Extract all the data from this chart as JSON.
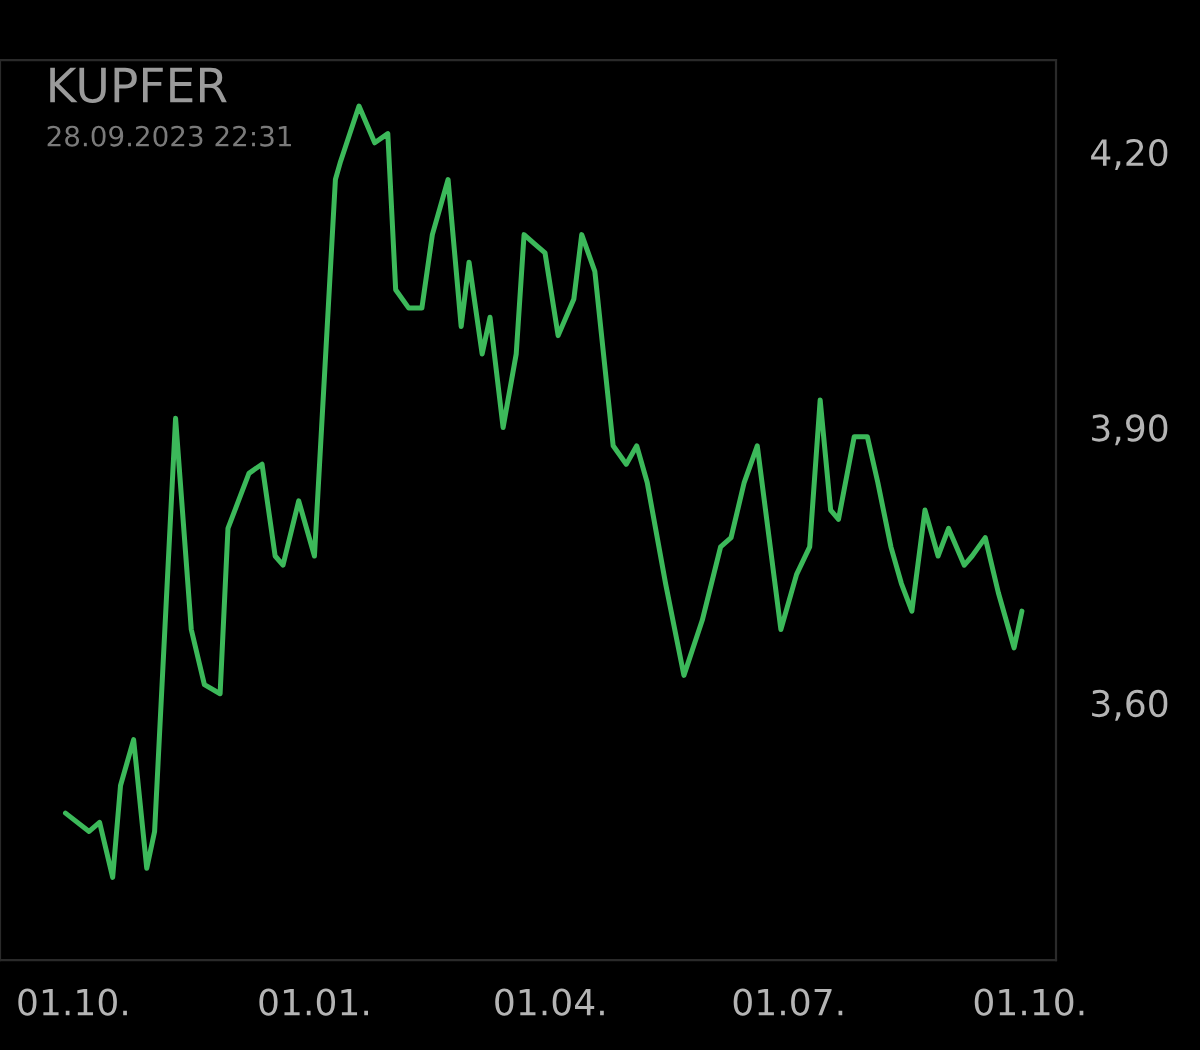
{
  "chart_data": {
    "type": "line",
    "title": "KUPFER",
    "subtitle": "28.09.2023 22:31",
    "x": [
      "2022-09-28",
      "2022-10-07",
      "2022-10-11",
      "2022-10-16",
      "2022-10-19",
      "2022-10-24",
      "2022-10-29",
      "2022-11-01",
      "2022-11-09",
      "2022-11-15",
      "2022-11-20",
      "2022-11-26",
      "2022-11-29",
      "2022-12-03",
      "2022-12-07",
      "2022-12-12",
      "2022-12-17",
      "2022-12-20",
      "2022-12-26",
      "2023-01-01",
      "2023-01-09",
      "2023-01-11",
      "2023-01-18",
      "2023-01-24",
      "2023-01-29",
      "2023-02-01",
      "2023-02-06",
      "2023-02-11",
      "2023-02-15",
      "2023-02-21",
      "2023-02-26",
      "2023-03-01",
      "2023-03-06",
      "2023-03-09",
      "2023-03-14",
      "2023-03-19",
      "2023-03-22",
      "2023-03-26",
      "2023-03-30",
      "2023-04-04",
      "2023-04-10",
      "2023-04-13",
      "2023-04-18",
      "2023-04-25",
      "2023-04-30",
      "2023-05-04",
      "2023-05-08",
      "2023-05-15",
      "2023-05-22",
      "2023-05-29",
      "2023-06-05",
      "2023-06-09",
      "2023-06-14",
      "2023-06-19",
      "2023-06-28",
      "2023-07-04",
      "2023-07-09",
      "2023-07-13",
      "2023-07-17",
      "2023-07-20",
      "2023-07-26",
      "2023-07-31",
      "2023-08-04",
      "2023-08-09",
      "2023-08-13",
      "2023-08-17",
      "2023-08-22",
      "2023-08-27",
      "2023-08-31",
      "2023-09-06",
      "2023-09-09",
      "2023-09-14",
      "2023-09-19",
      "2023-09-25",
      "2023-09-28"
    ],
    "series": [
      {
        "color": "#3cb95a",
        "values": [
          3.48,
          3.46,
          3.47,
          3.41,
          3.51,
          3.56,
          3.42,
          3.46,
          3.91,
          3.68,
          3.62,
          3.61,
          3.79,
          3.82,
          3.85,
          3.86,
          3.76,
          3.75,
          3.82,
          3.76,
          4.17,
          4.19,
          4.25,
          4.21,
          4.22,
          4.05,
          4.03,
          4.03,
          4.11,
          4.17,
          4.01,
          4.08,
          3.98,
          4.02,
          3.9,
          3.98,
          4.11,
          4.1,
          4.09,
          4.0,
          4.04,
          4.11,
          4.07,
          3.88,
          3.86,
          3.88,
          3.84,
          3.73,
          3.63,
          3.69,
          3.77,
          3.78,
          3.84,
          3.88,
          3.68,
          3.74,
          3.77,
          3.93,
          3.81,
          3.8,
          3.89,
          3.89,
          3.84,
          3.77,
          3.73,
          3.7,
          3.81,
          3.76,
          3.79,
          3.75,
          3.76,
          3.78,
          3.72,
          3.66,
          3.7
        ]
      }
    ],
    "xlim": [
      "2022-09-03",
      "2023-10-11"
    ],
    "xticks": [
      {
        "value": "2022-10-01",
        "label": "01.10."
      },
      {
        "value": "2023-01-01",
        "label": "01.01."
      },
      {
        "value": "2023-04-01",
        "label": "01.04."
      },
      {
        "value": "2023-07-01",
        "label": "01.07."
      },
      {
        "value": "2023-10-01",
        "label": "01.10."
      }
    ],
    "ylim": [
      3.32,
      4.3
    ],
    "yticks": [
      {
        "value": 3.6,
        "label": "3,60"
      },
      {
        "value": 3.9,
        "label": "3,90"
      },
      {
        "value": 4.2,
        "label": "4,20"
      }
    ],
    "grid": false,
    "legend": false,
    "marker": "none",
    "line_style": "solid"
  }
}
